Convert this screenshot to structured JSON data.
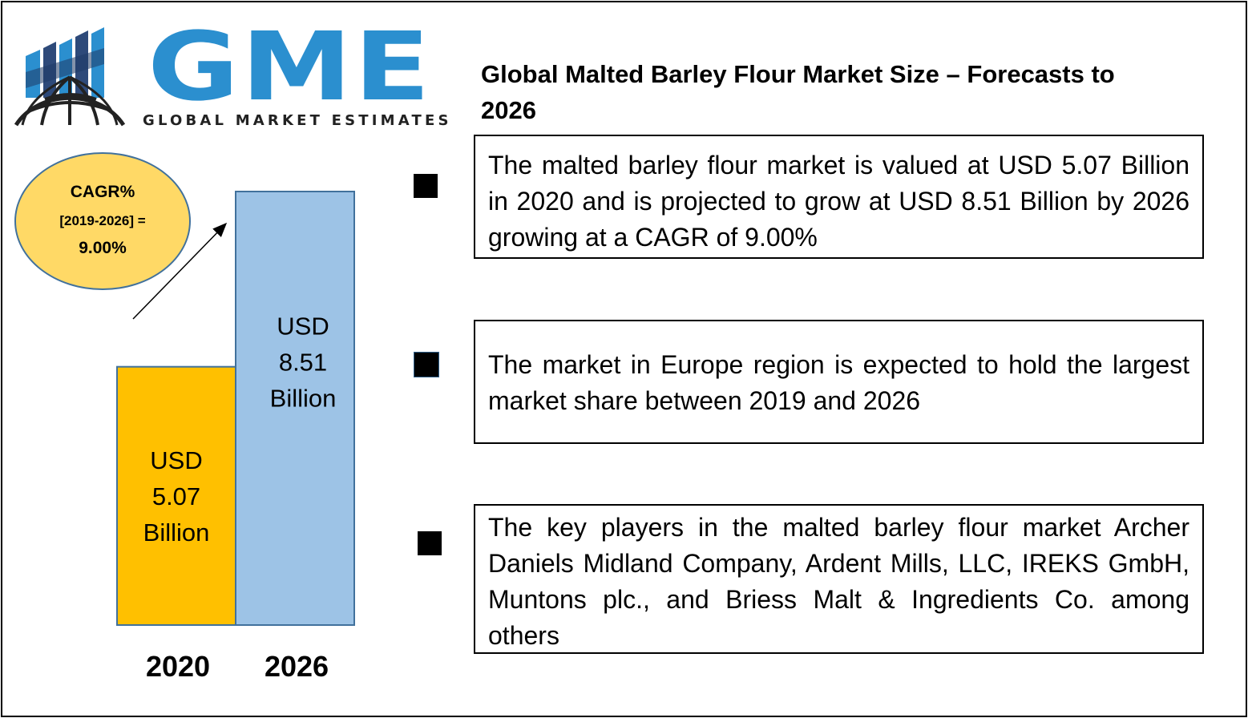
{
  "brand": {
    "logo_text": "GME",
    "logo_subtext": "GLOBAL MARKET ESTIMATES",
    "primary_color": "#2b8fcf",
    "dark_color": "#2e4a7a"
  },
  "title": "Global Malted Barley Flour Market Size – Forecasts to 2026",
  "cagr": {
    "label": "CAGR%",
    "range": "[2019-2026] =",
    "value": "9.00%"
  },
  "bullets": [
    {
      "text": "The malted barley flour market is valued at USD 5.07 Billion in 2020 and is projected to grow at USD 8.51 Billion by 2026 growing at a CAGR of 9.00%"
    },
    {
      "text": "The market in Europe region is expected to hold the largest market share between 2019 and 2026"
    },
    {
      "text": "The key players in the malted barley flour market Archer Daniels Midland Company, Ardent Mills, LLC, IREKS GmbH, Muntons plc., and Briess Malt & Ingredients Co. among others"
    }
  ],
  "chart_data": {
    "type": "bar",
    "categories": [
      "2020",
      "2026"
    ],
    "values": [
      5.07,
      8.51
    ],
    "unit": "USD Billion",
    "data_labels": [
      [
        "USD",
        "5.07",
        "Billion"
      ],
      [
        "USD",
        "8.51",
        "Billion"
      ]
    ],
    "colors": [
      "#ffc000",
      "#9dc3e6"
    ],
    "ylim": [
      0,
      8.51
    ],
    "grid": false,
    "title": "",
    "xlabel": "",
    "ylabel": ""
  }
}
